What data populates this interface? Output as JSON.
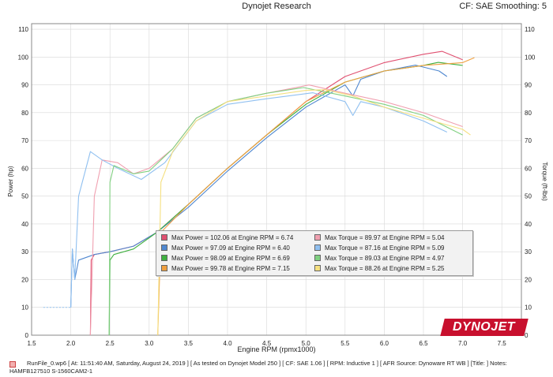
{
  "header": {
    "title": "Dynojet Research",
    "right_text": "CF: SAE Smoothing: 5"
  },
  "chart_data": {
    "type": "line",
    "xlabel": "Engine RPM (rpmx1000)",
    "ylabel_left": "Power (hp)",
    "ylabel_right": "Torque (ft-lbs)",
    "xlim": [
      1.5,
      7.75
    ],
    "ylim": [
      0,
      112
    ],
    "x_ticks": [
      "1.5",
      "2.0",
      "2.5",
      "3.0",
      "3.5",
      "4.0",
      "4.5",
      "5.0",
      "5.5",
      "6.0",
      "6.5",
      "7.0",
      "7.5"
    ],
    "y_ticks": [
      "0",
      "10",
      "20",
      "30",
      "40",
      "50",
      "60",
      "70",
      "80",
      "90",
      "100",
      "110"
    ],
    "grid": true,
    "series": [
      {
        "name": "Max Power = 102.06 at Engine RPM = 6.74",
        "quantity": "power",
        "color": "#e05070",
        "points": [
          [
            2.25,
            0
          ],
          [
            2.26,
            27
          ],
          [
            2.3,
            29
          ],
          [
            2.5,
            30
          ],
          [
            2.8,
            32
          ],
          [
            3.1,
            37
          ],
          [
            3.5,
            47
          ],
          [
            4.0,
            60
          ],
          [
            4.5,
            72
          ],
          [
            5.0,
            84
          ],
          [
            5.5,
            93
          ],
          [
            6.0,
            98
          ],
          [
            6.5,
            101
          ],
          [
            6.74,
            102.06
          ],
          [
            7.0,
            99
          ]
        ]
      },
      {
        "name": "Max Power = 97.09 at Engine RPM = 6.40",
        "quantity": "power",
        "color": "#5088d0",
        "points": [
          [
            2.0,
            10
          ],
          [
            2.02,
            31
          ],
          [
            2.05,
            20
          ],
          [
            2.1,
            27
          ],
          [
            2.3,
            29
          ],
          [
            2.5,
            30
          ],
          [
            2.8,
            32
          ],
          [
            3.1,
            37
          ],
          [
            3.5,
            46
          ],
          [
            4.0,
            59
          ],
          [
            4.5,
            71
          ],
          [
            5.0,
            82
          ],
          [
            5.5,
            90
          ],
          [
            5.6,
            86
          ],
          [
            5.7,
            92
          ],
          [
            6.0,
            95
          ],
          [
            6.4,
            97.09
          ],
          [
            6.7,
            95
          ],
          [
            6.8,
            93
          ]
        ]
      },
      {
        "name": "Max Power = 98.09 at Engine RPM = 6.69",
        "quantity": "power",
        "color": "#40b040",
        "points": [
          [
            2.49,
            0
          ],
          [
            2.5,
            27
          ],
          [
            2.55,
            29
          ],
          [
            2.8,
            31
          ],
          [
            3.1,
            37
          ],
          [
            3.5,
            47
          ],
          [
            4.0,
            60
          ],
          [
            4.5,
            72
          ],
          [
            5.0,
            83
          ],
          [
            5.5,
            91
          ],
          [
            6.0,
            95
          ],
          [
            6.5,
            97
          ],
          [
            6.69,
            98.09
          ],
          [
            7.0,
            97
          ]
        ]
      },
      {
        "name": "Max Power = 99.78 at Engine RPM = 7.15",
        "quantity": "power",
        "color": "#f0a040",
        "points": [
          [
            3.11,
            0
          ],
          [
            3.15,
            37
          ],
          [
            3.5,
            47
          ],
          [
            4.0,
            60
          ],
          [
            4.5,
            72
          ],
          [
            5.0,
            84
          ],
          [
            5.5,
            91
          ],
          [
            6.0,
            95
          ],
          [
            6.5,
            97
          ],
          [
            7.0,
            98
          ],
          [
            7.15,
            99.78
          ]
        ]
      },
      {
        "name": "Max Torque = 89.97 at Engine RPM = 5.04",
        "quantity": "torque",
        "color": "#f0a0b0",
        "points": [
          [
            2.25,
            0
          ],
          [
            2.3,
            50
          ],
          [
            2.4,
            63
          ],
          [
            2.6,
            62
          ],
          [
            2.8,
            58
          ],
          [
            3.0,
            60
          ],
          [
            3.3,
            67
          ],
          [
            3.6,
            78
          ],
          [
            4.0,
            84
          ],
          [
            4.5,
            87
          ],
          [
            5.04,
            89.97
          ],
          [
            5.5,
            87
          ],
          [
            6.0,
            84
          ],
          [
            6.5,
            80
          ],
          [
            7.0,
            75
          ]
        ]
      },
      {
        "name": "Max Torque = 87.16 at Engine RPM = 5.09",
        "quantity": "torque",
        "color": "#90c0f0",
        "points": [
          [
            2.0,
            10
          ],
          [
            2.02,
            31
          ],
          [
            2.05,
            20
          ],
          [
            2.1,
            50
          ],
          [
            2.25,
            66
          ],
          [
            2.4,
            63
          ],
          [
            2.6,
            60
          ],
          [
            2.9,
            56
          ],
          [
            3.2,
            62
          ],
          [
            3.6,
            77
          ],
          [
            4.0,
            83
          ],
          [
            4.5,
            85
          ],
          [
            5.09,
            87.16
          ],
          [
            5.5,
            84
          ],
          [
            5.6,
            79
          ],
          [
            5.7,
            84
          ],
          [
            6.0,
            82
          ],
          [
            6.5,
            77
          ],
          [
            6.8,
            73
          ]
        ]
      },
      {
        "name": "Max Torque = 89.03 at Engine RPM = 4.97",
        "quantity": "torque",
        "color": "#80d080",
        "points": [
          [
            2.49,
            0
          ],
          [
            2.5,
            55
          ],
          [
            2.55,
            61
          ],
          [
            2.8,
            58
          ],
          [
            3.0,
            59
          ],
          [
            3.3,
            67
          ],
          [
            3.6,
            78
          ],
          [
            4.0,
            84
          ],
          [
            4.5,
            87
          ],
          [
            4.97,
            89.03
          ],
          [
            5.5,
            86
          ],
          [
            6.0,
            83
          ],
          [
            6.5,
            79
          ],
          [
            7.0,
            72
          ]
        ]
      },
      {
        "name": "Max Torque = 88.26 at Engine RPM = 5.25",
        "quantity": "torque",
        "color": "#f5e080",
        "points": [
          [
            3.11,
            0
          ],
          [
            3.15,
            55
          ],
          [
            3.3,
            66
          ],
          [
            3.6,
            77
          ],
          [
            4.0,
            84
          ],
          [
            4.5,
            86
          ],
          [
            5.0,
            88
          ],
          [
            5.25,
            88.26
          ],
          [
            5.6,
            86
          ],
          [
            6.0,
            82
          ],
          [
            6.5,
            78
          ],
          [
            7.0,
            74
          ],
          [
            7.1,
            72
          ]
        ]
      }
    ]
  },
  "legend": {
    "left": [
      {
        "label": "Max Power = 102.06 at Engine RPM = 6.74",
        "color": "#e05070"
      },
      {
        "label": "Max Power = 97.09 at Engine RPM = 6.40",
        "color": "#5088d0"
      },
      {
        "label": "Max Power = 98.09 at Engine RPM = 6.69",
        "color": "#40b040"
      },
      {
        "label": "Max Power = 99.78 at Engine RPM = 7.15",
        "color": "#f0a040"
      }
    ],
    "right": [
      {
        "label": "Max Torque = 89.97 at Engine RPM = 5.04",
        "color": "#f0a0b0"
      },
      {
        "label": "Max Torque = 87.16 at Engine RPM = 5.09",
        "color": "#90c0f0"
      },
      {
        "label": "Max Torque = 89.03 at Engine RPM = 4.97",
        "color": "#80d080"
      },
      {
        "label": "Max Torque = 88.26 at Engine RPM = 5.25",
        "color": "#f5e080"
      }
    ]
  },
  "logo": {
    "text": "DYNOJET"
  },
  "footer": {
    "line1": "RunFile_0.wp6 [ At: 11:51:40 AM, Saturday, August 24, 2019 ] [ As tested on Dynojet Model 250 ] [ CF: SAE 1.06 ] [ RPM: Inductive 1 ] [ AFR Source: Dynoware RT WB ] [Title: ]  Notes:",
    "line2": "HAMFB127510 S-1560CAM2-1",
    "marker_color": "#f3b0b0"
  }
}
